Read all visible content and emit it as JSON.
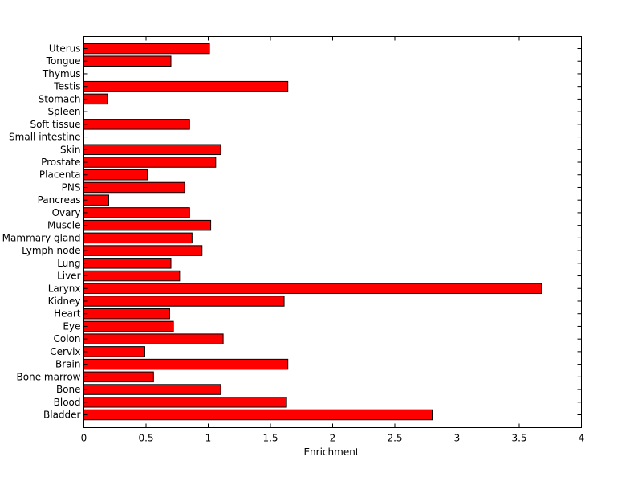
{
  "chart_data": {
    "type": "bar",
    "orientation": "horizontal",
    "title": "",
    "xlabel": "Enrichment",
    "ylabel": "",
    "xlim": [
      0,
      4
    ],
    "xticks": [
      0,
      0.5,
      1,
      1.5,
      2,
      2.5,
      3,
      3.5,
      4
    ],
    "xtick_labels": [
      "0",
      "0.5",
      "1",
      "1.5",
      "2",
      "2.5",
      "3",
      "3.5",
      "4"
    ],
    "grid": false,
    "bar_color": "#ff0000",
    "categories": [
      "Bladder",
      "Blood",
      "Bone",
      "Bone marrow",
      "Brain",
      "Cervix",
      "Colon",
      "Eye",
      "Heart",
      "Kidney",
      "Larynx",
      "Liver",
      "Lung",
      "Lymph node",
      "Mammary gland",
      "Muscle",
      "Ovary",
      "Pancreas",
      "PNS",
      "Placenta",
      "Prostate",
      "Skin",
      "Small intestine",
      "Soft tissue",
      "Spleen",
      "Stomach",
      "Testis",
      "Thymus",
      "Tongue",
      "Uterus"
    ],
    "values": [
      2.8,
      1.63,
      1.1,
      0.56,
      1.64,
      0.49,
      1.12,
      0.72,
      0.69,
      1.61,
      3.68,
      0.77,
      0.7,
      0.95,
      0.87,
      1.02,
      0.85,
      0.2,
      0.81,
      0.51,
      1.06,
      1.1,
      0,
      0.85,
      0,
      0.19,
      1.64,
      0,
      0.7,
      1.01
    ]
  }
}
